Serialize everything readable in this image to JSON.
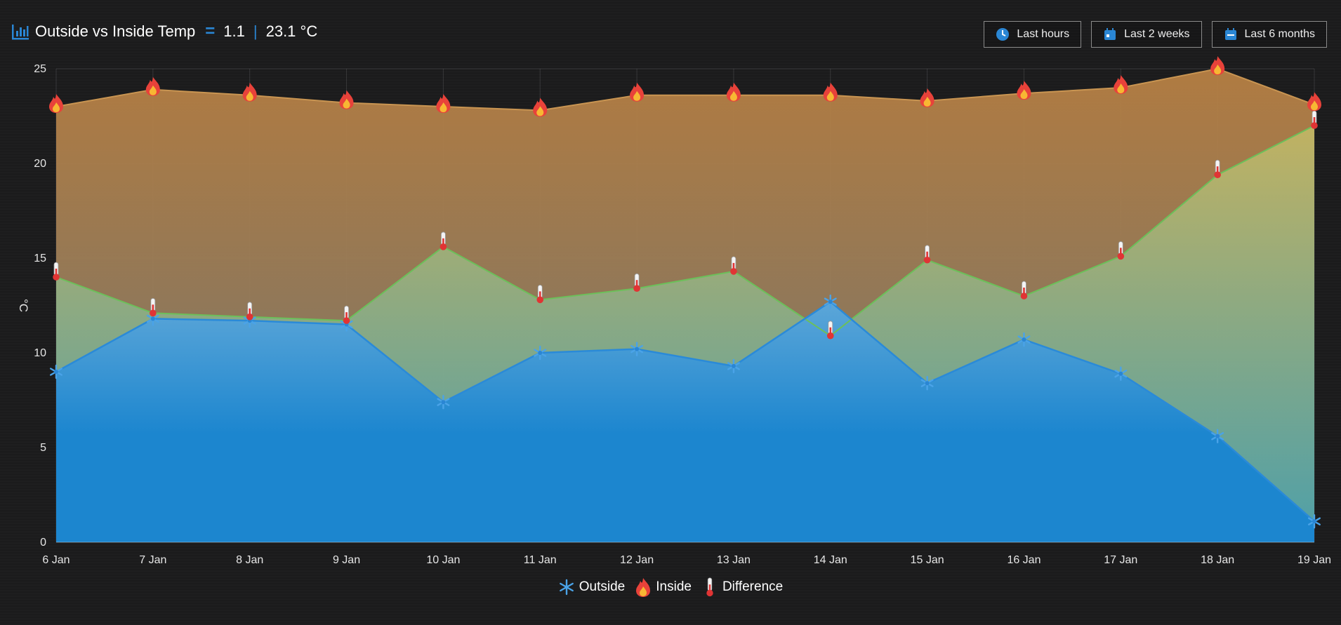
{
  "header": {
    "title": "Outside vs Inside Temp",
    "outside_value": "1.1",
    "inside_value": "23.1 °C"
  },
  "buttons": [
    {
      "label": "Last hours",
      "icon": "clock-icon"
    },
    {
      "label": "Last 2 weeks",
      "icon": "calendar-icon"
    },
    {
      "label": "Last 6 months",
      "icon": "calendar-icon"
    }
  ],
  "colors": {
    "outside": "#1c86cf",
    "inside": "#b47c42",
    "difference": "#7fc168",
    "accent": "#2a86d4"
  },
  "chart_data": {
    "type": "area",
    "ylabel": "°C",
    "ylim": [
      0,
      25
    ],
    "yticks": [
      0,
      5,
      10,
      15,
      20,
      25
    ],
    "grid": true,
    "legend_position": "bottom",
    "categories": [
      "6 Jan",
      "7 Jan",
      "8 Jan",
      "9 Jan",
      "10 Jan",
      "11 Jan",
      "12 Jan",
      "13 Jan",
      "14 Jan",
      "15 Jan",
      "16 Jan",
      "17 Jan",
      "18 Jan",
      "19 Jan"
    ],
    "series": [
      {
        "name": "Outside",
        "marker": "snowflake-icon",
        "values": [
          9.0,
          11.8,
          11.7,
          11.5,
          7.4,
          10.0,
          10.2,
          9.3,
          12.7,
          8.4,
          10.7,
          8.9,
          5.6,
          1.1
        ]
      },
      {
        "name": "Inside",
        "marker": "fire-icon",
        "values": [
          23.0,
          23.9,
          23.6,
          23.2,
          23.0,
          22.8,
          23.6,
          23.6,
          23.6,
          23.3,
          23.7,
          24.0,
          25.0,
          23.1
        ]
      },
      {
        "name": "Difference",
        "marker": "thermometer-icon",
        "values": [
          14.0,
          12.1,
          11.9,
          11.7,
          15.6,
          12.8,
          13.4,
          14.3,
          10.9,
          14.9,
          13.0,
          15.1,
          19.4,
          22.0
        ]
      }
    ]
  }
}
